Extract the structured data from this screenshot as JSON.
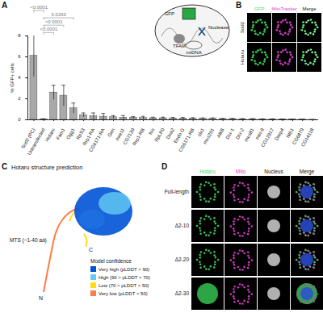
{
  "chart_data": {
    "type": "bar",
    "y_label": "% GFP+ cells",
    "categories": [
      "Sod2 (PC)",
      "Untransfected",
      "Hotaru",
      "Fam1",
      "Ogg1",
      "RpS3",
      "Rrp1-RA",
      "CG6171-RA",
      "Gen",
      "mre11",
      "CG7139",
      "Rrp1-RB",
      "fos",
      "RpLP0",
      "Dna2",
      "Endo G",
      "CG6171-RB",
      "slx1",
      "mus201",
      "AlkB",
      "Dcr-1",
      "Dcr-2",
      "mus81",
      "mei-9",
      "CG12917",
      "Drep4",
      "Nth1",
      "CG6879",
      "CG14118"
    ],
    "values": [
      6.1,
      0.05,
      2.6,
      2.3,
      1.1,
      0.45,
      0.35,
      0.3,
      0.25,
      0.2,
      0.2,
      0.18,
      0.15,
      0.15,
      0.12,
      0.12,
      0.1,
      0.1,
      0.1,
      0.08,
      0.08,
      0.06,
      0.06,
      0.05,
      0.05,
      0.04,
      0.03,
      0.02,
      0.01
    ],
    "errors": [
      2.0,
      0.05,
      0.7,
      1.0,
      0.5,
      0.2,
      0.3,
      0.3,
      0.15,
      0.2,
      0.1,
      0.15,
      0.1,
      0.1,
      0.1,
      0.1,
      0.1,
      0.08,
      0.08,
      0.05,
      0.05,
      0.05,
      0.05,
      0.04,
      0.04,
      0.03,
      0.03,
      0.02,
      0.01
    ],
    "color": "#a9a9a9",
    "ylim": [
      0,
      8
    ],
    "yticks": [
      0,
      2,
      4,
      6,
      8
    ],
    "annotations": [
      {
        "from": "Sod2 (PC)",
        "to": "Untransfected",
        "label": "<0.0001"
      },
      {
        "from": "Untransfected",
        "to": "Ogg1",
        "label": "0.0263"
      },
      {
        "from": "Untransfected",
        "to": "Fam1",
        "label": "<0.0001"
      },
      {
        "from": "Untransfected",
        "to": "Hotaru",
        "label": "<0.0001"
      }
    ]
  },
  "panel_labels": [
    "A",
    "B",
    "C",
    "D"
  ],
  "inset": {
    "gfp": "GFP",
    "tfam": "TFAM",
    "nuclease": "Nuclease",
    "mtdna": "mtDNA"
  },
  "panel_b": {
    "columns": [
      "GFP",
      "MitoTracker",
      "Merge"
    ],
    "rows": [
      "Sod2",
      "Hotaru"
    ]
  },
  "panel_c": {
    "title": "Hotaru structure prediction",
    "mts": "MTS (~1-40 aa)",
    "n_term": "N",
    "c_term": "C",
    "legend": {
      "title": "Model confidence",
      "items": [
        {
          "label": "Very high (pLDDT > 90)",
          "color": "#0053d6"
        },
        {
          "label": "High (90 > pLDDT > 70)",
          "color": "#65cbf3"
        },
        {
          "label": "Low (70 > pLDDT > 50)",
          "color": "#ffdb13"
        },
        {
          "label": "Very low (pLDDT < 50)",
          "color": "#ff7d45"
        }
      ]
    }
  },
  "panel_d": {
    "columns": [
      "Hotaru",
      "Mito",
      "Nucleus",
      "Merge"
    ],
    "rows": [
      "Full-length",
      "Δ2-10",
      "Δ2-20",
      "Δ2-30"
    ]
  }
}
